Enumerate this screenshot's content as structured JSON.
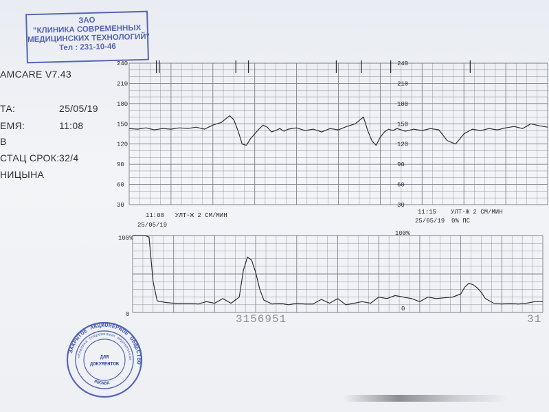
{
  "header": {
    "device": "AMCARE V7.43",
    "date_label": "ТА:",
    "date_value": "25/05/19",
    "time_label": "ЕМЯ:",
    "time_value": "11:08",
    "line3": "В",
    "gest_label": "СТАЦ СРОК:",
    "gest_value": "32/4",
    "name": "НИЦЫНА"
  },
  "stamp_rect": {
    "line1": "ЗАО",
    "line2": "\"КЛИНИКА СОВРЕМЕННЫХ",
    "line3": "МЕДИЦИНСКИХ ТЕХНОЛОГИЙ\"",
    "line4": "Тел : 231-10-46"
  },
  "stamp_round": {
    "outer_text": "ЗАКРЫТОЕ АКЦИОНЕРНОЕ ОБЩЕСТВО",
    "inner_text": "«Клиника современных медицинских технологий»",
    "bottom_text": "МОСКВА",
    "center_line1": "ДЛЯ",
    "center_line2": "ДОКУМЕНТОВ"
  },
  "serial": "3156951",
  "serial_right": "31",
  "colors": {
    "ink": "#2a2d35",
    "grid": "#7d8088",
    "stamp": "#3a4fa8"
  },
  "chart_data": [
    {
      "type": "line",
      "name_in_chart": "",
      "y_ticks": [
        30,
        60,
        90,
        120,
        150,
        180,
        210,
        240
      ],
      "ylim": [
        30,
        240
      ],
      "ylabel": "",
      "label_left_time": "11:08",
      "label_left_date": "25/05/19",
      "label_left_mode": "УЛТ-Ж  2 СМ/МИН",
      "label_right_time": "11:15",
      "label_right_date": "25/05/19",
      "label_right_mode": "УЛТ-Ж  2 СМ/МИН",
      "label_right_extra": "0% ПС",
      "x": [
        0,
        2,
        4,
        6,
        8,
        10,
        12,
        14,
        16,
        18,
        20,
        22,
        24,
        25,
        26,
        27,
        28,
        29,
        30,
        31,
        32,
        33,
        34,
        35,
        36,
        37,
        38,
        40,
        42,
        44,
        46,
        48,
        50,
        52,
        54,
        56,
        57,
        58,
        59,
        60,
        61,
        62,
        63,
        64,
        65,
        66,
        68,
        70,
        72,
        74,
        76,
        78,
        80,
        82,
        84,
        86,
        88,
        90,
        92,
        94,
        96,
        98,
        100
      ],
      "values": [
        143,
        142,
        144,
        141,
        143,
        142,
        144,
        143,
        145,
        142,
        148,
        152,
        162,
        156,
        140,
        120,
        118,
        128,
        135,
        142,
        148,
        145,
        138,
        140,
        143,
        139,
        142,
        144,
        140,
        142,
        138,
        143,
        141,
        146,
        150,
        160,
        140,
        125,
        118,
        130,
        138,
        142,
        140,
        143,
        141,
        139,
        142,
        140,
        143,
        141,
        125,
        120,
        135,
        142,
        140,
        143,
        141,
        144,
        146,
        143,
        150,
        147,
        145
      ]
    },
    {
      "type": "line",
      "y_ticks_labels": [
        "100%",
        "0"
      ],
      "ylim": [
        0,
        100
      ],
      "x": [
        0,
        1,
        2,
        3,
        4,
        5,
        6,
        8,
        10,
        12,
        14,
        16,
        18,
        20,
        22,
        24,
        25,
        26,
        27,
        28,
        29,
        30,
        31,
        32,
        34,
        36,
        38,
        40,
        42,
        44,
        46,
        48,
        50,
        52,
        54,
        56,
        58,
        60,
        62,
        64,
        66,
        68,
        70,
        72,
        74,
        76,
        78,
        80,
        81,
        82,
        83,
        84,
        85,
        86,
        88,
        90,
        92,
        94,
        96,
        98,
        100
      ],
      "values": [
        100,
        100,
        100,
        100,
        98,
        40,
        15,
        13,
        12,
        12,
        12,
        11,
        14,
        12,
        18,
        12,
        16,
        20,
        55,
        72,
        68,
        52,
        30,
        16,
        11,
        12,
        10,
        12,
        11,
        11,
        17,
        12,
        18,
        10,
        12,
        14,
        12,
        20,
        18,
        22,
        20,
        18,
        14,
        20,
        18,
        19,
        20,
        24,
        33,
        38,
        36,
        32,
        26,
        18,
        12,
        11,
        12,
        11,
        12,
        14,
        14
      ]
    }
  ]
}
